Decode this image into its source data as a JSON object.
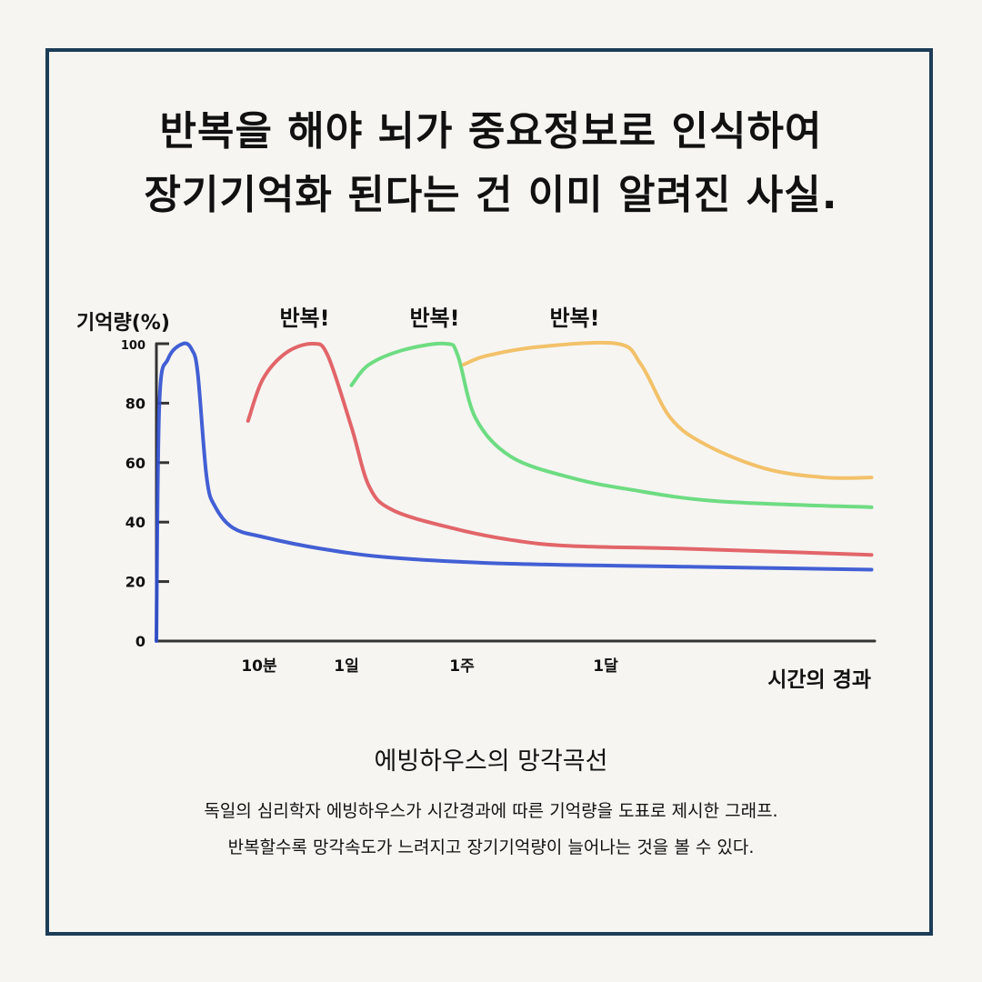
{
  "headline": {
    "line1": "반복을 해야 뇌가 중요정보로 인식하여",
    "line2": "장기기억화 된다는 건 이미 알려진 사실."
  },
  "chart_data": {
    "type": "line",
    "ylabel": "기억량(%)",
    "xlabel": "시간의 경과",
    "ylim": [
      0,
      100
    ],
    "yticks": [
      "0",
      "20",
      "40",
      "60",
      "80",
      "100"
    ],
    "xticks": [
      "10분",
      "1일",
      "1주",
      "1달"
    ],
    "annotations": [
      "반복!",
      "반복!",
      "반복!"
    ],
    "colors": {
      "blue": "#2f4fd0",
      "red": "#e0555a",
      "green": "#5fd975",
      "orange": "#f2bb5a"
    },
    "series": [
      {
        "color": "blue",
        "points": [
          [
            0,
            0
          ],
          [
            0.05,
            80
          ],
          [
            0.2,
            95
          ],
          [
            0.45,
            100
          ],
          [
            0.6,
            98
          ],
          [
            0.7,
            90
          ],
          [
            0.85,
            55
          ],
          [
            1.0,
            45
          ],
          [
            1.3,
            38
          ],
          [
            1.8,
            35
          ],
          [
            2.8,
            31
          ],
          [
            4,
            28
          ],
          [
            6,
            26
          ],
          [
            9,
            25
          ],
          [
            12.1,
            24
          ]
        ]
      },
      {
        "color": "red",
        "points": [
          [
            1.55,
            74
          ],
          [
            1.8,
            88
          ],
          [
            2.2,
            97
          ],
          [
            2.65,
            100
          ],
          [
            2.9,
            96
          ],
          [
            3.3,
            72
          ],
          [
            3.6,
            52
          ],
          [
            4,
            44
          ],
          [
            5,
            38
          ],
          [
            6,
            34
          ],
          [
            7,
            32
          ],
          [
            9,
            31
          ],
          [
            12.1,
            29
          ]
        ]
      },
      {
        "color": "green",
        "points": [
          [
            3.3,
            86
          ],
          [
            3.6,
            93
          ],
          [
            4.2,
            98
          ],
          [
            4.9,
            100
          ],
          [
            5.1,
            96
          ],
          [
            5.4,
            75
          ],
          [
            6,
            62
          ],
          [
            7,
            55
          ],
          [
            8,
            51
          ],
          [
            9.5,
            47
          ],
          [
            12.1,
            45
          ]
        ]
      },
      {
        "color": "orange",
        "points": [
          [
            5.2,
            93
          ],
          [
            5.6,
            96
          ],
          [
            6.5,
            99
          ],
          [
            7.8,
            100
          ],
          [
            8.2,
            93
          ],
          [
            8.7,
            75
          ],
          [
            9.3,
            66
          ],
          [
            10.3,
            58
          ],
          [
            11.3,
            55
          ],
          [
            12.1,
            55
          ]
        ]
      }
    ]
  },
  "caption": {
    "title": "에빙하우스의 망각곡선",
    "line1": "독일의 심리학자 에빙하우스가 시간경과에 따른 기억량을 도표로 제시한 그래프.",
    "line2": "반복할수록 망각속도가 느려지고 장기기억량이 늘어나는 것을 볼 수 있다."
  }
}
